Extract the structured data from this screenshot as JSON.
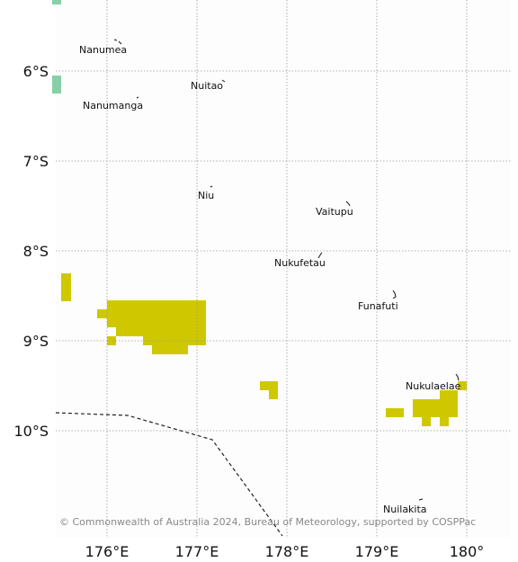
{
  "map": {
    "lat_labels": [
      "6°S",
      "7°S",
      "8°S",
      "9°S",
      "10°S"
    ],
    "lon_labels": [
      "176°E",
      "177°E",
      "178°E",
      "179°E",
      "180°"
    ],
    "credit": "© Commonwealth of Australia 2024, Bureau of Meteorology, supported by COSPPac",
    "colors": {
      "anomaly_yellow": "#cfc800",
      "anomaly_green": "#88cfa6",
      "grid": "#9a9a9a",
      "boundary": "#222222"
    },
    "islands": [
      {
        "name": "Nanumea",
        "lon": 176.1,
        "lat": -5.65
      },
      {
        "name": "Nuitao",
        "lon": 177.3,
        "lat": -6.12
      },
      {
        "name": "Nanumanga",
        "lon": 176.35,
        "lat": -6.3
      },
      {
        "name": "Niu",
        "lon": 177.17,
        "lat": -7.3
      },
      {
        "name": "Vaitupu",
        "lon": 178.68,
        "lat": -7.47
      },
      {
        "name": "Nukufetau",
        "lon": 178.38,
        "lat": -8.03
      },
      {
        "name": "Funafuti",
        "lon": 179.2,
        "lat": -8.52
      },
      {
        "name": "Nukulaelae",
        "lon": 179.9,
        "lat": -9.4
      },
      {
        "name": "Nuilakita",
        "lon": 179.5,
        "lat": -10.77
      }
    ]
  }
}
